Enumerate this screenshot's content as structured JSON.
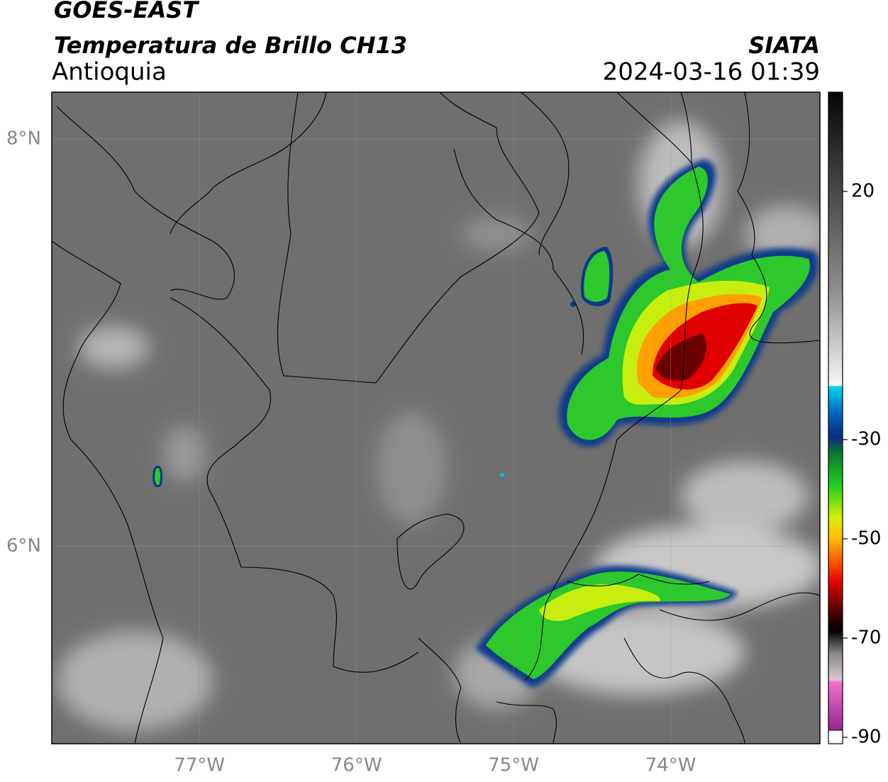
{
  "header": {
    "title": "GOES-EAST",
    "subtitle": "Temperatura de Brillo CH13",
    "region": "Antioquia",
    "source": "SIATA",
    "datetime": "2024-03-16 01:39"
  },
  "map": {
    "xlim": [
      -77.94,
      -73.05
    ],
    "ylim": [
      5.03,
      8.23
    ],
    "xticks": [
      {
        "value": -77,
        "label": "77°W"
      },
      {
        "value": -76,
        "label": "76°W"
      },
      {
        "value": -75,
        "label": "75°W"
      },
      {
        "value": -74,
        "label": "74°W"
      }
    ],
    "yticks": [
      {
        "value": 8,
        "label": "8°N"
      },
      {
        "value": 6,
        "label": "6°N"
      }
    ]
  },
  "colorbar": {
    "lim": [
      -90,
      40
    ],
    "ticks": [
      20,
      -30,
      -50,
      -70,
      -90
    ]
  }
}
